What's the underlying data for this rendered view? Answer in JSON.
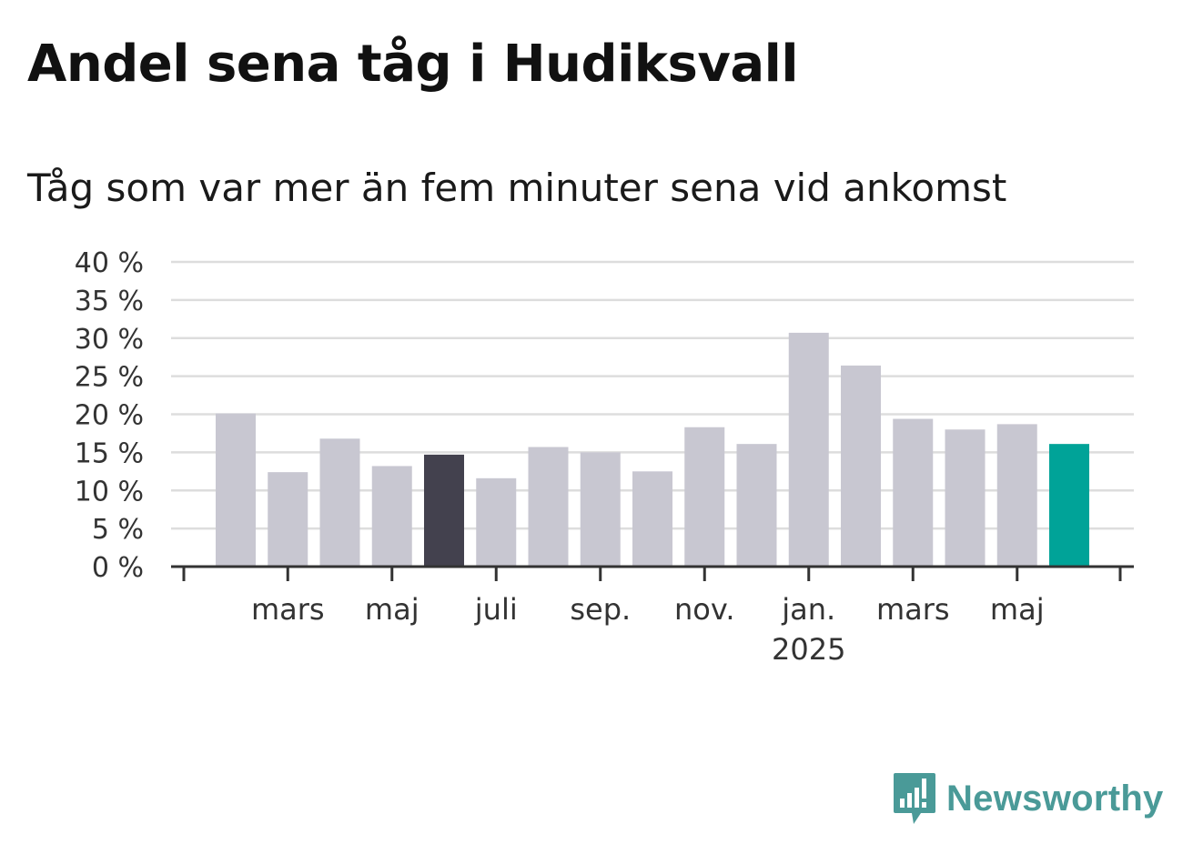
{
  "title": "Andel sena tåg i Hudiksvall",
  "subtitle": "Tåg som var mer än fem minuter sena vid ankomst",
  "brand": {
    "name": "Newsworthy",
    "color": "#4a9a98",
    "icon": "newsworthy-logo-icon"
  },
  "colors": {
    "bar": "#c8c7d1",
    "highlight_dark": "#43414e",
    "highlight_accent": "#00a398",
    "grid": "#dddddd",
    "axis": "#333333"
  },
  "chart_data": {
    "type": "bar",
    "title": "Andel sena tåg i Hudiksvall",
    "subtitle": "Tåg som var mer än fem minuter sena vid ankomst",
    "xlabel": "",
    "ylabel": "",
    "ylim": [
      0,
      40
    ],
    "yticks": [
      "0 %",
      "5 %",
      "10 %",
      "15 %",
      "20 %",
      "25 %",
      "30 %",
      "35 %",
      "40 %"
    ],
    "grid": true,
    "legend": "none",
    "categories": [
      "2024-02",
      "2024-03",
      "2024-04",
      "2024-05",
      "2024-06",
      "2024-07",
      "2024-08",
      "2024-09",
      "2024-10",
      "2024-11",
      "2024-12",
      "2025-01",
      "2025-02",
      "2025-03",
      "2025-04",
      "2025-05",
      "2025-06"
    ],
    "values": [
      20.1,
      12.4,
      16.8,
      13.2,
      14.7,
      11.6,
      15.7,
      15.0,
      12.5,
      18.3,
      16.1,
      30.7,
      26.4,
      19.4,
      18.0,
      18.7,
      16.1
    ],
    "highlight": {
      "2024-06": "dark",
      "2025-06": "accent"
    },
    "x_tick_labels": [
      {
        "at": "2024-03",
        "label": "mars"
      },
      {
        "at": "2024-05",
        "label": "maj"
      },
      {
        "at": "2024-07",
        "label": "juli"
      },
      {
        "at": "2024-09",
        "label": "sep."
      },
      {
        "at": "2024-11",
        "label": "nov."
      },
      {
        "at": "2025-01",
        "label": "jan.",
        "sublabel": "2025"
      },
      {
        "at": "2025-03",
        "label": "mars"
      },
      {
        "at": "2025-05",
        "label": "maj"
      }
    ]
  }
}
